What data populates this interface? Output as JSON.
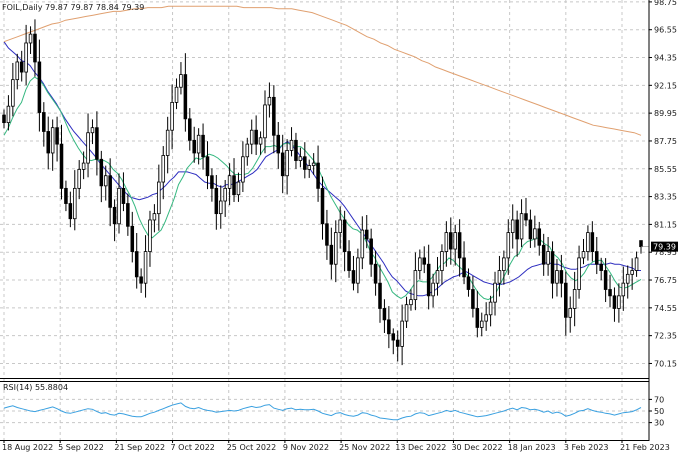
{
  "header": {
    "symbol_line": "FOIL,Daily  79.87 79.87 78.84 79.39"
  },
  "rsi_panel": {
    "label": "RSI(14) 55.8804"
  },
  "current_price_label": "79.39",
  "chart_data": [
    {
      "type": "candlestick",
      "title": "FOIL,Daily  79.87 79.87 78.84 79.39",
      "xlabel": "",
      "ylabel": "",
      "ylim": [
        69.0,
        98.9
      ],
      "grid": true,
      "yticks": [
        "98.75",
        "96.55",
        "94.35",
        "92.15",
        "89.95",
        "87.75",
        "85.55",
        "83.35",
        "81.15",
        "78.95",
        "76.75",
        "74.55",
        "72.35",
        "70.15"
      ],
      "xticks": [
        "18 Aug 2022",
        "5 Sep 2022",
        "21 Sep 2022",
        "7 Oct 2022",
        "25 Oct 2022",
        "9 Nov 2022",
        "25 Nov 2022",
        "13 Dec 2022",
        "30 Dec 2022",
        "18 Jan 2023",
        "3 Feb 2023",
        "21 Feb 2023"
      ],
      "last": {
        "open": 79.87,
        "high": 79.87,
        "low": 78.84,
        "close": 79.39
      },
      "closes": [
        89.2,
        90.5,
        92.6,
        94.0,
        93.2,
        95.5,
        96.2,
        94.0,
        90.0,
        88.5,
        86.8,
        88.8,
        87.5,
        84.0,
        82.8,
        81.6,
        84.0,
        85.5,
        86.0,
        88.4,
        88.8,
        86.3,
        84.2,
        85.0,
        82.5,
        81.2,
        84.0,
        82.8,
        81.0,
        79.0,
        77.0,
        76.5,
        79.0,
        81.5,
        82.0,
        84.5,
        86.6,
        88.6,
        90.8,
        92.0,
        93.0,
        89.5,
        87.8,
        86.8,
        88.2,
        86.5,
        85.0,
        84.0,
        82.0,
        83.0,
        84.0,
        85.0,
        83.5,
        84.5,
        86.5,
        87.5,
        88.6,
        87.5,
        88.0,
        90.6,
        91.2,
        88.2,
        86.8,
        85.0,
        87.0,
        87.8,
        86.2,
        86.5,
        85.5,
        85.8,
        86.0,
        84.0,
        81.2,
        79.5,
        78.0,
        80.5,
        81.5,
        79.0,
        77.5,
        76.5,
        78.5,
        80.7,
        80.0,
        78.0,
        76.5,
        74.5,
        73.6,
        72.5,
        72.0,
        71.5,
        73.5,
        74.8,
        75.2,
        77.5,
        78.5,
        78.0,
        75.5,
        76.5,
        77.5,
        79.0,
        80.5,
        79.2,
        80.5,
        78.5,
        77.0,
        76.0,
        74.5,
        73.0,
        73.5,
        74.0,
        75.0,
        76.5,
        77.5,
        78.5,
        80.5,
        81.5,
        80.0,
        82.0,
        81.5,
        80.0,
        80.8,
        79.5,
        78.0,
        79.0,
        76.5,
        77.5,
        76.5,
        73.8,
        74.5,
        76.0,
        78.5,
        79.0,
        80.5,
        79.0,
        78.0,
        77.5,
        76.0,
        75.5,
        74.5,
        75.5,
        76.5,
        77.2,
        77.5,
        78.5,
        79.39
      ],
      "series": [
        {
          "name": "",
          "color": "#2e2ec0",
          "values": [
            95.6,
            95.1,
            94.8,
            94.5,
            94.1,
            94.0,
            93.7,
            93.2,
            92.8,
            92.3,
            91.7,
            91.2,
            90.7,
            90.1,
            89.5,
            89.0,
            88.5,
            88.1,
            87.7,
            87.3,
            86.9,
            86.5,
            86.0,
            85.6,
            85.2,
            84.8,
            84.4,
            84.0,
            83.6,
            83.3,
            83.2,
            83.1,
            83.2,
            83.3,
            83.5,
            83.6,
            83.9,
            84.2,
            84.6,
            84.9,
            85.3,
            85.3,
            85.3,
            85.2,
            85.1,
            84.8,
            84.5,
            84.4,
            84.4,
            84.2,
            84.1,
            84.3,
            84.3,
            84.4,
            84.6,
            84.8,
            85.0,
            85.2,
            85.5,
            86.0,
            86.5,
            86.7,
            86.9,
            87.1,
            87.5,
            87.7,
            87.4,
            87.0,
            86.5,
            86.1,
            85.6,
            85.1,
            84.6,
            84.2,
            83.9,
            83.6,
            83.3,
            83.0,
            82.6,
            82.1,
            81.6,
            81.1,
            80.6,
            80.1,
            79.6,
            79.1,
            78.6,
            78.1,
            77.5,
            77.0,
            76.7,
            76.3,
            75.9,
            75.7,
            75.6,
            75.5,
            75.5,
            75.6,
            75.8,
            76.0,
            76.3,
            76.6,
            76.8,
            77.0,
            77.1,
            77.3,
            77.4,
            77.2,
            77.0,
            76.8,
            76.6,
            76.5,
            76.4,
            76.4,
            76.4,
            76.5,
            76.6,
            76.8,
            77.0,
            77.3,
            77.6,
            77.8,
            77.9,
            78.0,
            78.1,
            78.1,
            78.0,
            78.0,
            77.8,
            77.7,
            77.6,
            77.6,
            77.7,
            77.8,
            78.0,
            78.0,
            78.0,
            78.0,
            78.0,
            78.1,
            78.0,
            78.0,
            77.9,
            77.8,
            77.7,
            77.5,
            77.5
          ]
        },
        {
          "name": "",
          "color": "#35b880",
          "values": [
            88.2,
            88.8,
            89.6,
            90.3,
            90.8,
            91.8,
            92.5,
            92.8,
            92.6,
            92.2,
            91.6,
            91.1,
            90.6,
            90.1,
            89.3,
            88.5,
            87.8,
            87.2,
            86.7,
            86.3,
            86.2,
            86.3,
            86.2,
            86.2,
            86.0,
            85.5,
            85.2,
            84.7,
            84.0,
            83.4,
            82.6,
            81.6,
            80.9,
            80.3,
            80.1,
            80.4,
            80.7,
            81.4,
            82.3,
            83.2,
            84.3,
            84.9,
            85.6,
            86.0,
            86.4,
            86.3,
            86.5,
            86.7,
            86.6,
            86.4,
            86.1,
            85.8,
            85.4,
            85.1,
            85.1,
            85.1,
            85.2,
            85.6,
            86.2,
            86.8,
            87.3,
            87.3,
            87.4,
            87.2,
            87.5,
            87.6,
            87.4,
            87.3,
            87.3,
            87.0,
            86.6,
            86.2,
            85.6,
            84.8,
            84.0,
            83.3,
            82.7,
            82.1,
            81.6,
            81.1,
            80.8,
            80.7,
            80.4,
            79.8,
            79.0,
            78.5,
            77.8,
            77.2,
            76.6,
            75.8,
            75.5,
            75.3,
            75.5,
            75.9,
            76.4,
            76.7,
            76.6,
            76.6,
            76.9,
            77.4,
            77.9,
            78.1,
            78.5,
            78.3,
            77.9,
            77.6,
            77.2,
            76.7,
            76.1,
            75.6,
            75.3,
            75.2,
            75.4,
            75.9,
            76.6,
            77.3,
            78.0,
            78.6,
            78.8,
            79.5,
            79.8,
            79.9,
            80.1,
            79.9,
            79.6,
            79.4,
            78.8,
            78.5,
            78.0,
            77.3,
            76.9,
            76.7,
            76.9,
            77.3,
            77.9,
            78.2,
            78.3,
            78.3,
            77.8,
            77.3,
            76.7,
            76.2,
            76.1,
            76.2,
            76.4,
            76.6,
            76.8
          ]
        },
        {
          "name": "",
          "color": "#e0a070",
          "values": [
            95.6,
            95.8,
            96.0,
            96.2,
            96.4,
            96.6,
            96.8,
            97.0,
            97.1,
            97.3,
            97.4,
            97.5,
            97.6,
            97.7,
            97.8,
            97.9,
            98.0,
            98.0,
            98.1,
            98.2,
            98.2,
            98.3,
            98.3,
            98.3,
            98.4,
            98.4,
            98.4,
            98.4,
            98.4,
            98.4,
            98.4,
            98.4,
            98.4,
            98.4,
            98.4,
            98.3,
            98.3,
            98.3,
            98.3,
            98.3,
            98.2,
            98.2,
            98.2,
            98.1,
            98.0,
            97.9,
            97.7,
            97.5,
            97.3,
            97.1,
            96.9,
            96.6,
            96.3,
            96.0,
            95.8,
            95.5,
            95.3,
            95.0,
            94.8,
            94.6,
            94.4,
            94.1,
            93.9,
            93.6,
            93.4,
            93.2,
            93.0,
            92.8,
            92.6,
            92.4,
            92.2,
            92.0,
            91.8,
            91.6,
            91.4,
            91.2,
            91.0,
            90.8,
            90.6,
            90.4,
            90.2,
            90.0,
            89.8,
            89.6,
            89.4,
            89.2,
            89.0,
            88.9,
            88.8,
            88.7,
            88.6,
            88.5,
            88.4,
            88.2
          ]
        }
      ]
    },
    {
      "type": "line",
      "title": "RSI(14) 55.8804",
      "ylim": [
        0,
        100
      ],
      "yticks": [
        "70",
        "50",
        "30"
      ],
      "grid": true,
      "series": [
        {
          "name": "RSI(14)",
          "color": "#3aa0e0",
          "values": [
            55,
            57,
            59,
            56,
            54,
            52,
            50,
            49,
            51,
            53,
            55,
            57,
            54,
            50,
            47,
            46,
            48,
            50,
            52,
            54,
            53,
            49,
            46,
            47,
            44,
            43,
            46,
            45,
            43,
            41,
            40,
            40,
            43,
            46,
            48,
            51,
            54,
            57,
            60,
            62,
            64,
            58,
            55,
            54,
            56,
            53,
            51,
            50,
            48,
            49,
            50,
            51,
            50,
            51,
            54,
            56,
            58,
            56,
            57,
            60,
            61,
            55,
            53,
            51,
            54,
            55,
            52,
            53,
            52,
            52,
            53,
            50,
            46,
            44,
            42,
            46,
            47,
            44,
            42,
            41,
            43,
            47,
            46,
            43,
            41,
            38,
            37,
            36,
            35,
            35,
            38,
            40,
            41,
            45,
            47,
            46,
            42,
            44,
            46,
            48,
            51,
            49,
            51,
            48,
            46,
            44,
            42,
            40,
            41,
            42,
            44,
            46,
            48,
            50,
            53,
            55,
            52,
            56,
            55,
            52,
            53,
            51,
            48,
            50,
            46,
            48,
            46,
            41,
            43,
            46,
            50,
            51,
            54,
            51,
            49,
            48,
            46,
            45,
            43,
            45,
            47,
            48,
            49,
            52,
            56
          ]
        }
      ]
    }
  ]
}
